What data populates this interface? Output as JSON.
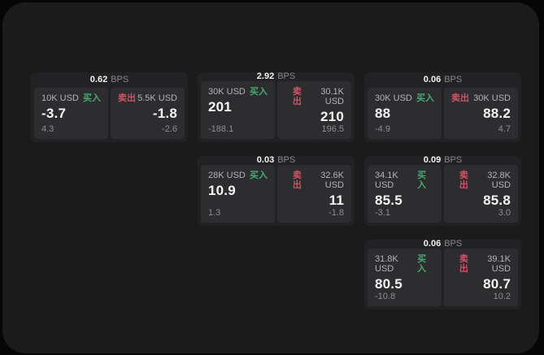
{
  "labels": {
    "bps": "BPS",
    "buy": "买入",
    "sell": "卖出"
  },
  "colors": {
    "background": "#060606",
    "canvas": "#1b1b1c",
    "card": "#222224",
    "panel": "#2d2d2f",
    "buy_accent": "#47a873",
    "sell_accent": "#cf5364"
  },
  "cards": [
    {
      "bps": "0.62",
      "buy": {
        "size": "10K USD",
        "price": "-3.7",
        "delta": "4.3"
      },
      "sell": {
        "size": "5.5K USD",
        "price": "-1.8",
        "delta": "-2.6"
      }
    },
    {
      "bps": "2.92",
      "buy": {
        "size": "30K USD",
        "price": "201",
        "delta": "-188.1"
      },
      "sell": {
        "size": "30.1K USD",
        "price": "210",
        "delta": "196.5"
      }
    },
    {
      "bps": "0.06",
      "buy": {
        "size": "30K USD",
        "price": "88",
        "delta": "-4.9"
      },
      "sell": {
        "size": "30K USD",
        "price": "88.2",
        "delta": "4.7"
      }
    },
    {
      "bps": "0.03",
      "buy": {
        "size": "28K USD",
        "price": "10.9",
        "delta": "1.3"
      },
      "sell": {
        "size": "32.6K USD",
        "price": "11",
        "delta": "-1.8"
      }
    },
    {
      "bps": "0.09",
      "buy": {
        "size": "34.1K USD",
        "price": "85.5",
        "delta": "-3.1"
      },
      "sell": {
        "size": "32.8K USD",
        "price": "85.8",
        "delta": "3.0"
      }
    },
    {
      "bps": "0.06",
      "buy": {
        "size": "31.8K USD",
        "price": "80.5",
        "delta": "-10.8"
      },
      "sell": {
        "size": "39.1K USD",
        "price": "80.7",
        "delta": "10.2"
      }
    }
  ]
}
